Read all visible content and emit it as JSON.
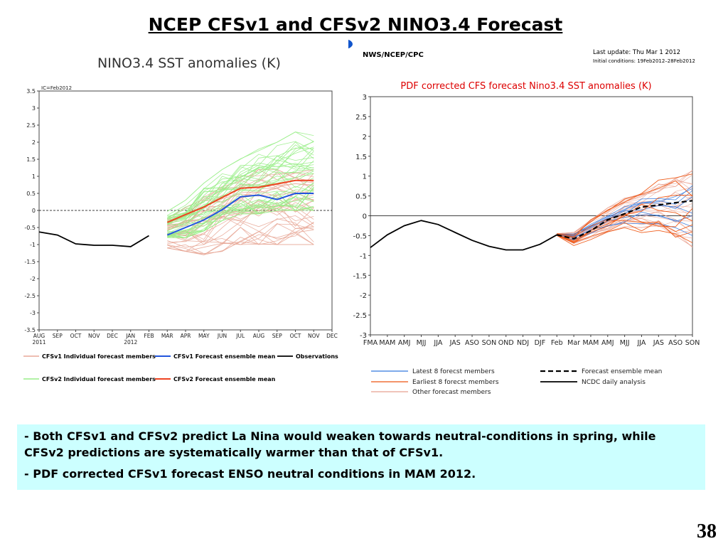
{
  "slide": {
    "title": "NCEP CFSv1 and CFSv2 NINO3.4 Forecast",
    "bullets": [
      "- Both CFSv1 and CFSv2 predict La Nina would weaken towards neutral-conditions in spring, while CFSv2 predictions are systematically warmer than that of CFSv1.",
      "- PDF corrected CFSv1 forecast ENSO neutral conditions in MAM 2012."
    ],
    "page_number": "38"
  },
  "colors": {
    "cfsv1_member": "#e8a898",
    "cfsv1_mean": "#2255dd",
    "observations": "#000000",
    "cfsv2_member": "#99ee88",
    "cfsv2_mean": "#ee4422",
    "latest_members": "#3377dd",
    "earliest_members": "#ee5511",
    "other_members": "#e8a090",
    "text_box": "#ccffff"
  },
  "chart_data": [
    {
      "type": "line",
      "title": "NINO3.4 SST anomalies (K)",
      "annotation": "IC=Feb2012",
      "x_ticks": [
        "AUG",
        "SEP",
        "OCT",
        "NOV",
        "DEC",
        "JAN",
        "FEB",
        "MAR",
        "APR",
        "MAY",
        "JUN",
        "JUL",
        "AUG",
        "SEP",
        "OCT",
        "NOV",
        "DEC"
      ],
      "x_year_labels": [
        {
          "index": 0,
          "label": "2011"
        },
        {
          "index": 5,
          "label": "2012"
        }
      ],
      "y_ticks": [
        "3.5",
        "3",
        "2.5",
        "2",
        "1.5",
        "1",
        "0.5",
        "0",
        "-0.5",
        "-1",
        "-1.5",
        "-2",
        "-2.5",
        "-3",
        "-3.5"
      ],
      "ylim": [
        -3.5,
        3.5
      ],
      "zero_line": "dashed",
      "series": [
        {
          "name": "Observations",
          "style": "observations",
          "x": [
            0,
            1,
            2,
            3,
            4,
            5,
            6
          ],
          "values": [
            -0.63,
            -0.72,
            -0.98,
            -1.02,
            -1.02,
            -1.06,
            -0.74
          ]
        },
        {
          "name": "CFSv1 Forecast ensemble mean",
          "style": "cfsv1_mean",
          "x": [
            7,
            8,
            9,
            10,
            11,
            12,
            13,
            14,
            15,
            16
          ],
          "values": [
            -0.72,
            -0.5,
            -0.28,
            0.02,
            0.4,
            0.45,
            0.32,
            0.5,
            0.5,
            null
          ]
        },
        {
          "name": "CFSv2 Forecast ensemble mean",
          "style": "cfsv2_mean",
          "x": [
            7,
            8,
            9,
            10,
            11,
            12,
            13,
            14,
            15
          ],
          "values": [
            -0.35,
            -0.12,
            0.1,
            0.38,
            0.65,
            0.68,
            0.78,
            0.88,
            0.88
          ]
        }
      ],
      "member_groups": [
        {
          "name": "CFSv1 Individual forecast members",
          "style": "cfsv1_member",
          "x": [
            7,
            8,
            9,
            10,
            11,
            12,
            13,
            14,
            15
          ],
          "count": 36,
          "spread_low": [
            -1.1,
            -1.2,
            -1.3,
            -1.2,
            -1.0,
            -1.0,
            -1.0,
            -1.0,
            -1.0
          ],
          "spread_high": [
            -0.2,
            0.1,
            0.4,
            0.7,
            1.0,
            1.2,
            1.2,
            1.1,
            1.2
          ]
        },
        {
          "name": "CFSv2 Individual forecast members",
          "style": "cfsv2_member",
          "x": [
            7,
            8,
            9,
            10,
            11,
            12,
            13,
            14,
            15
          ],
          "count": 40,
          "spread_low": [
            -0.8,
            -0.8,
            -0.6,
            -0.3,
            -0.1,
            -0.1,
            0.0,
            0.0,
            0.0
          ],
          "spread_high": [
            0.0,
            0.3,
            0.8,
            1.2,
            1.6,
            1.8,
            2.0,
            2.3,
            2.5
          ]
        }
      ],
      "legend": [
        {
          "label": "CFSv1 Individual forecast members",
          "style": "cfsv1_member"
        },
        {
          "label": "CFSv1 Forecast ensemble mean",
          "style": "cfsv1_mean"
        },
        {
          "label": "Observations",
          "style": "observations"
        },
        {
          "label": "CFSv2 Individual forecast members",
          "style": "cfsv2_member"
        },
        {
          "label": "CFSv2 Forecast ensemble mean",
          "style": "cfsv2_mean"
        }
      ]
    },
    {
      "type": "line",
      "header": "NWS/NCEP/CPC",
      "last_update": "Last update: Thu Mar 1 2012",
      "initial_conditions": "Initial conditions: 19Feb2012–28Feb2012",
      "title": "PDF corrected CFS forecast Nino3.4 SST anomalies (K)",
      "x_ticks": [
        "FMA",
        "MAM",
        "AMJ",
        "MJJ",
        "JJA",
        "JAS",
        "ASO",
        "SON",
        "OND",
        "NDJ",
        "DJF",
        "Feb",
        "Mar",
        "MAM",
        "AMJ",
        "MJJ",
        "JJA",
        "JAS",
        "ASO",
        "SON"
      ],
      "y_ticks": [
        "3",
        "2.5",
        "2",
        "1.5",
        "1",
        "0.5",
        "0",
        "-0.5",
        "-1",
        "-1.5",
        "-2",
        "-2.5",
        "-3"
      ],
      "ylim": [
        -3,
        3
      ],
      "zero_line": "dashed",
      "series": [
        {
          "name": "NCDC daily analysis",
          "style": "observations",
          "x": [
            0,
            1,
            2,
            3,
            4,
            5,
            6,
            7,
            8,
            9,
            10,
            11
          ],
          "values": [
            -0.8,
            -0.48,
            -0.25,
            -0.12,
            -0.22,
            -0.42,
            -0.62,
            -0.77,
            -0.86,
            -0.86,
            -0.72,
            -0.48
          ]
        },
        {
          "name": "Forecast ensemble mean",
          "style": "ensemble_dashed",
          "x": [
            11,
            12,
            13,
            14,
            15,
            16,
            17,
            18,
            19
          ],
          "values": [
            -0.48,
            -0.58,
            -0.38,
            -0.1,
            0.05,
            0.22,
            0.27,
            0.33,
            0.38
          ]
        }
      ],
      "member_groups": [
        {
          "name": "Latest 8 forecst members",
          "style": "latest_members",
          "x": [
            11,
            12,
            13,
            14,
            15,
            16,
            17,
            18,
            19
          ],
          "count": 8,
          "spread_low": [
            -0.5,
            -0.62,
            -0.45,
            -0.3,
            -0.2,
            -0.2,
            -0.2,
            -0.3,
            -0.5
          ],
          "spread_high": [
            -0.45,
            -0.4,
            -0.1,
            0.2,
            0.4,
            0.6,
            0.7,
            0.9,
            1.1
          ]
        },
        {
          "name": "Earliest 8 forecst members",
          "style": "earliest_members",
          "x": [
            11,
            12,
            13,
            14,
            15,
            16,
            17,
            18,
            19
          ],
          "count": 8,
          "spread_low": [
            -0.5,
            -0.75,
            -0.6,
            -0.45,
            -0.3,
            -0.45,
            -0.55,
            -0.7,
            -0.8
          ],
          "spread_high": [
            -0.45,
            -0.42,
            -0.05,
            0.25,
            0.5,
            0.7,
            0.9,
            1.05,
            1.25
          ]
        },
        {
          "name": "Other forecast members",
          "style": "other_members",
          "x": [
            11,
            12,
            13,
            14,
            15,
            16,
            17,
            18,
            19
          ],
          "count": 24,
          "spread_low": [
            -0.5,
            -0.7,
            -0.55,
            -0.4,
            -0.3,
            -0.3,
            -0.4,
            -0.5,
            -0.8
          ],
          "spread_high": [
            -0.45,
            -0.42,
            -0.1,
            0.2,
            0.45,
            0.6,
            0.8,
            0.95,
            1.15
          ]
        }
      ],
      "legend": [
        {
          "label": "Latest 8 forecst members",
          "style": "latest_members"
        },
        {
          "label": "Earliest 8 forecst members",
          "style": "earliest_members"
        },
        {
          "label": "Other forecast members",
          "style": "other_members"
        },
        {
          "label": "Forecast ensemble mean",
          "style": "ensemble_dashed"
        },
        {
          "label": "NCDC daily analysis",
          "style": "observations"
        }
      ]
    }
  ]
}
